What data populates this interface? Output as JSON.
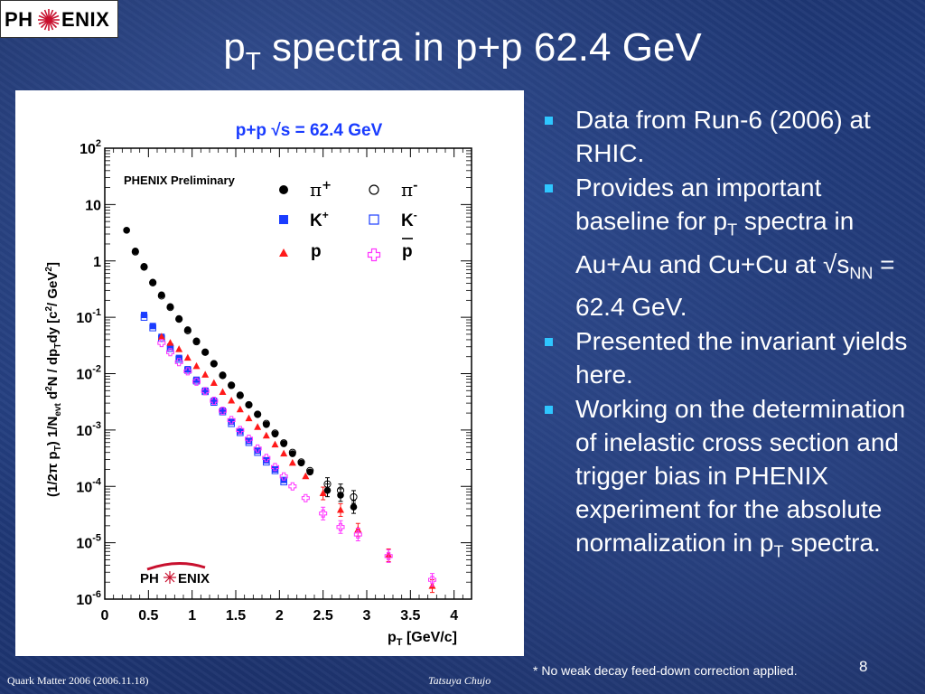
{
  "logo": {
    "left_text": "PH",
    "right_text": "ENIX"
  },
  "title": {
    "main": "p",
    "sub": "T",
    "rest": " spectra in p+p 62.4 GeV"
  },
  "chart_data": {
    "type": "scatter",
    "title": "p+p √s = 62.4 GeV",
    "subtitle": "PHENIX Preliminary",
    "xlabel": "p_T [GeV/c]",
    "ylabel": "(1/2π p_T) 1/N_evt d²N / dp_T dy [c²/ GeV²]",
    "xlim": [
      0,
      4.2
    ],
    "ylim": [
      1e-06,
      100
    ],
    "yscale": "log",
    "xticks": [
      "0",
      "0.5",
      "1",
      "1.5",
      "2",
      "2.5",
      "3",
      "3.5",
      "4"
    ],
    "yticks": [
      "10^-6",
      "10^-5",
      "10^-4",
      "10^-3",
      "10^-2",
      "10^-1",
      "1",
      "10",
      "10^2"
    ],
    "legend_placement": "top-right",
    "series": [
      {
        "name": "π+",
        "marker": "filled-circle",
        "color": "#000000",
        "x": [
          0.25,
          0.35,
          0.45,
          0.55,
          0.65,
          0.75,
          0.85,
          0.95,
          1.05,
          1.15,
          1.25,
          1.35,
          1.45,
          1.55,
          1.65,
          1.75,
          1.85,
          1.95,
          2.05,
          2.15,
          2.25,
          2.35,
          2.55,
          2.7,
          2.85
        ],
        "y": [
          3.5,
          1.5,
          0.8,
          0.42,
          0.25,
          0.155,
          0.095,
          0.06,
          0.038,
          0.024,
          0.015,
          0.0095,
          0.0063,
          0.0042,
          0.0028,
          0.0019,
          0.00125,
          0.00085,
          0.00057,
          0.00038,
          0.00026,
          0.00018,
          8.5e-05,
          7e-05,
          4.3e-05
        ]
      },
      {
        "name": "π-",
        "marker": "open-circle",
        "color": "#000000",
        "x": [
          0.35,
          0.45,
          0.55,
          0.65,
          0.75,
          0.85,
          0.95,
          1.05,
          1.15,
          1.25,
          1.35,
          1.45,
          1.55,
          1.65,
          1.75,
          1.85,
          1.95,
          2.05,
          2.15,
          2.25,
          2.35,
          2.55,
          2.7,
          2.85
        ],
        "y": [
          1.45,
          0.78,
          0.41,
          0.24,
          0.15,
          0.093,
          0.058,
          0.037,
          0.024,
          0.015,
          0.0093,
          0.0062,
          0.0041,
          0.0028,
          0.0019,
          0.0013,
          0.00088,
          0.00059,
          0.0004,
          0.00027,
          0.00019,
          0.00011,
          8.5e-05,
          6.5e-05
        ]
      },
      {
        "name": "K+",
        "marker": "filled-square",
        "color": "#1a3cff",
        "x": [
          0.45,
          0.55,
          0.65,
          0.75,
          0.85,
          0.95,
          1.05,
          1.15,
          1.25,
          1.35,
          1.45,
          1.55,
          1.65,
          1.75,
          1.85,
          1.95,
          2.05
        ],
        "y": [
          0.11,
          0.07,
          0.045,
          0.03,
          0.019,
          0.012,
          0.0078,
          0.005,
          0.0033,
          0.0022,
          0.0014,
          0.00095,
          0.00064,
          0.00043,
          0.00029,
          0.0002,
          0.00013
        ]
      },
      {
        "name": "K-",
        "marker": "open-square",
        "color": "#1a3cff",
        "x": [
          0.45,
          0.55,
          0.65,
          0.75,
          0.85,
          0.95,
          1.05,
          1.15,
          1.25,
          1.35,
          1.45,
          1.55,
          1.65,
          1.75,
          1.85,
          1.95,
          2.05
        ],
        "y": [
          0.1,
          0.065,
          0.042,
          0.028,
          0.018,
          0.0115,
          0.0074,
          0.0048,
          0.0031,
          0.0021,
          0.0013,
          0.0009,
          0.0006,
          0.0004,
          0.00027,
          0.00019,
          0.00012
        ]
      },
      {
        "name": "p",
        "marker": "filled-triangle",
        "color": "#ff1a1a",
        "x": [
          0.65,
          0.75,
          0.85,
          0.95,
          1.05,
          1.15,
          1.25,
          1.35,
          1.45,
          1.55,
          1.65,
          1.75,
          1.85,
          1.95,
          2.05,
          2.15,
          2.3,
          2.5,
          2.7,
          2.9,
          3.25,
          3.75
        ],
        "y": [
          0.045,
          0.035,
          0.027,
          0.019,
          0.0135,
          0.0095,
          0.0068,
          0.0047,
          0.0033,
          0.0023,
          0.0016,
          0.00112,
          0.00079,
          0.00055,
          0.00038,
          0.00026,
          0.00015,
          7.5e-05,
          3.8e-05,
          1.7e-05,
          6e-06,
          1.7e-06
        ]
      },
      {
        "name": "p̄",
        "marker": "open-cross",
        "color": "#ff33ff",
        "x": [
          0.65,
          0.75,
          0.85,
          0.95,
          1.05,
          1.15,
          1.25,
          1.35,
          1.45,
          1.55,
          1.65,
          1.75,
          1.85,
          1.95,
          2.05,
          2.15,
          2.3,
          2.5,
          2.7,
          2.9,
          3.25,
          3.75
        ],
        "y": [
          0.035,
          0.024,
          0.016,
          0.011,
          0.0072,
          0.0049,
          0.0033,
          0.0022,
          0.0015,
          0.001,
          0.0007,
          0.00047,
          0.00032,
          0.00022,
          0.00015,
          0.0001,
          6.2e-05,
          3.3e-05,
          1.9e-05,
          1.4e-05,
          5.8e-06,
          2.2e-06
        ]
      }
    ]
  },
  "legend": {
    "pi_plus": {
      "base": "π",
      "sup": "+"
    },
    "pi_minus": {
      "base": "π",
      "sup": "-"
    },
    "k_plus": {
      "base": "K",
      "sup": "+"
    },
    "k_minus": {
      "base": "K",
      "sup": "-"
    },
    "p": {
      "base": "p"
    },
    "pbar": {
      "base": "p"
    }
  },
  "bullets": [
    {
      "parts": [
        {
          "t": "Data from Run-6 (2006) at RHIC."
        }
      ]
    },
    {
      "parts": [
        {
          "t": "Provides an important baseline for p"
        },
        {
          "t": "T",
          "sub": true
        },
        {
          "t": " spectra in Au+Au and Cu+Cu at √s"
        },
        {
          "t": "NN",
          "sub": true
        },
        {
          "t": " = 62.4 GeV."
        }
      ]
    },
    {
      "parts": [
        {
          "t": "Presented the invariant yields here."
        }
      ]
    },
    {
      "parts": [
        {
          "t": "Working on the determination of inelastic cross section and trigger bias in PHENIX experiment for the absolute normalization in p"
        },
        {
          "t": "T",
          "sub": true
        },
        {
          "t": " spectra."
        }
      ]
    }
  ],
  "footnote": "* No weak decay feed-down correction applied.",
  "slide_number": "8",
  "footer": {
    "left": "Quark Matter 2006 (2006.11.18)",
    "right": "Tatsuya Chujo"
  },
  "colors": {
    "background": "#1f3a78",
    "bullet": "#2ec6ff",
    "chart_title": "#1a3cff"
  }
}
